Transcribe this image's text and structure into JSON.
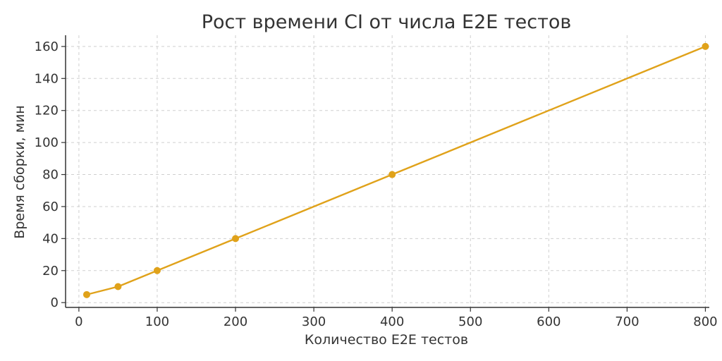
{
  "chart_data": {
    "type": "line",
    "title": "Рост времени CI от числа E2E тестов",
    "xlabel": "Количество E2E тестов",
    "ylabel": "Время сборки, мин",
    "xlim": [
      -17,
      805
    ],
    "ylim": [
      -3,
      167
    ],
    "x_ticks": [
      0,
      100,
      200,
      300,
      400,
      500,
      600,
      700,
      800
    ],
    "y_ticks": [
      0,
      20,
      40,
      60,
      80,
      100,
      120,
      140,
      160
    ],
    "grid": true,
    "series": [
      {
        "color": "#E0A21A",
        "x": [
          10,
          50,
          100,
          200,
          400,
          800
        ],
        "y": [
          5,
          10,
          20,
          40,
          80,
          160
        ]
      }
    ]
  }
}
